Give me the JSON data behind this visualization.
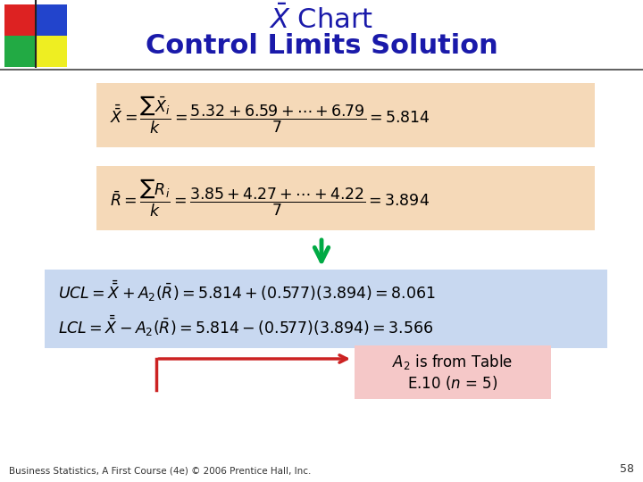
{
  "title_line1": "$\\bar{X}$ Chart",
  "title_line2": "Control Limits Solution",
  "title_color": "#1a1aaa",
  "bg_color": "#ffffff",
  "box1_color": "#f5d9b8",
  "box2_color": "#c8d8f0",
  "box3_color": "#f5c8c8",
  "footer_text": "Business Statistics, A First Course (4e) © 2006 Prentice Hall, Inc.",
  "page_num": "58",
  "formula_color": "#000000",
  "logo_colors": [
    "#dd2222",
    "#2244cc",
    "#22aa44",
    "#eeee22"
  ],
  "arrow_green": "#00aa44",
  "arrow_red": "#cc2222",
  "sep_line_color": "#444444"
}
